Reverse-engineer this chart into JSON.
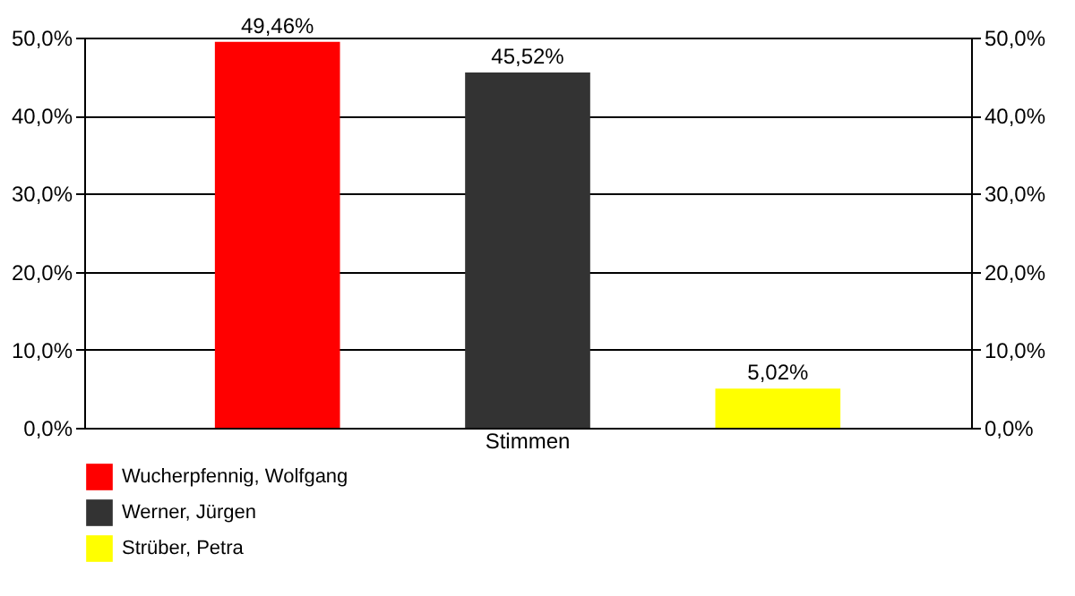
{
  "chart_data": {
    "type": "bar",
    "categories": [
      "Stimmen"
    ],
    "series": [
      {
        "name": "Wucherpfennig, Wolfgang",
        "color": "#ff0000",
        "values": [
          49.46
        ],
        "value_labels": [
          "49,46%"
        ]
      },
      {
        "name": "Werner, Jürgen",
        "color": "#333333",
        "values": [
          45.52
        ],
        "value_labels": [
          "45,52%"
        ]
      },
      {
        "name": "Strüber, Petra",
        "color": "#ffff00",
        "values": [
          5.02
        ],
        "value_labels": [
          "5,02%"
        ]
      }
    ],
    "ylim": [
      0,
      50
    ],
    "yticks": [
      {
        "value": 0,
        "label": "0,0%"
      },
      {
        "value": 10,
        "label": "10,0%"
      },
      {
        "value": 20,
        "label": "20,0%"
      },
      {
        "value": 30,
        "label": "30,0%"
      },
      {
        "value": 40,
        "label": "40,0%"
      },
      {
        "value": 50,
        "label": "50,0%"
      }
    ],
    "grid": "y",
    "legend": "bottom"
  }
}
